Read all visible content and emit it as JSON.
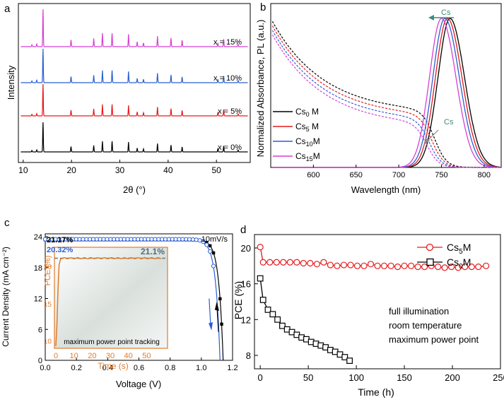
{
  "panel_labels": {
    "a": "a",
    "b": "b",
    "c": "c",
    "d": "d"
  },
  "chart_data": [
    {
      "id": "a",
      "type": "line",
      "title": "",
      "xlabel": "2θ (°)",
      "ylabel": "Intensity",
      "xlim": [
        9,
        57
      ],
      "xticks": [
        10,
        20,
        30,
        40,
        50
      ],
      "series": [
        {
          "name": "x = 0%",
          "color": "#000000"
        },
        {
          "name": "x = 5%",
          "color": "#e8191b"
        },
        {
          "name": "x = 10%",
          "color": "#2a5fd4"
        },
        {
          "name": "x = 15%",
          "color": "#d63fd6"
        }
      ],
      "peaks": [
        {
          "x": 11.8,
          "h": 0.05
        },
        {
          "x": 12.8,
          "h": 0.07
        },
        {
          "x": 14.1,
          "h": 1.0
        },
        {
          "x": 19.9,
          "h": 0.18
        },
        {
          "x": 24.6,
          "h": 0.22
        },
        {
          "x": 26.4,
          "h": 0.36
        },
        {
          "x": 28.4,
          "h": 0.36
        },
        {
          "x": 31.8,
          "h": 0.33
        },
        {
          "x": 33.6,
          "h": 0.13
        },
        {
          "x": 34.9,
          "h": 0.1
        },
        {
          "x": 37.8,
          "h": 0.28
        },
        {
          "x": 40.6,
          "h": 0.23
        },
        {
          "x": 42.9,
          "h": 0.17
        },
        {
          "x": 50.3,
          "h": 0.1
        },
        {
          "x": 51.5,
          "h": 0.2
        },
        {
          "x": 54.5,
          "h": 0.06
        }
      ]
    },
    {
      "id": "b",
      "type": "line",
      "title": "",
      "xlabel": "Wavelength (nm)",
      "ylabel": "Normalized Absorbance, PL (a.u.)",
      "xlim": [
        550,
        820
      ],
      "xticks": [
        600,
        650,
        700,
        750,
        800
      ],
      "ylim": [
        0,
        1.1
      ],
      "legend_position": "bottom-left",
      "series": [
        {
          "name_main": "Cs",
          "name_sub": "0",
          "name_suffix": " M",
          "color": "#000000",
          "pl_peak": 760,
          "abs_edge": 742
        },
        {
          "name_main": "Cs",
          "name_sub": "5",
          "name_suffix": " M",
          "color": "#e8191b",
          "pl_peak": 757,
          "abs_edge": 739
        },
        {
          "name_main": "Cs",
          "name_sub": "10",
          "name_suffix": "M",
          "color": "#2a5fd4",
          "pl_peak": 754,
          "abs_edge": 736
        },
        {
          "name_main": "Cs",
          "name_sub": "15",
          "name_suffix": "M",
          "color": "#d63fd6",
          "pl_peak": 750,
          "abs_edge": 733
        }
      ],
      "annotations": [
        "Cs",
        "Cs"
      ]
    },
    {
      "id": "c",
      "type": "line",
      "title": "",
      "xlabel": "Voltage (V)",
      "ylabel": "Current Density (mA cm⁻²)",
      "xlim": [
        0.0,
        1.2
      ],
      "ylim": [
        0,
        24
      ],
      "xticks": [
        0.0,
        0.2,
        0.4,
        0.6,
        0.8,
        1.0,
        1.2
      ],
      "yticks": [
        0,
        6,
        12,
        18,
        24
      ],
      "scan_rate": "10mV/s",
      "series": [
        {
          "name": "21.17%",
          "color": "#000000",
          "marker": "square-filled",
          "jsc": 23.4,
          "voc": 1.14
        },
        {
          "name": "20.32%",
          "color": "#2a5fd4",
          "marker": "circle-open",
          "jsc": 23.3,
          "voc": 1.12
        }
      ],
      "inset": {
        "xlabel": "Time (s)",
        "ylabel": "PCE (%)",
        "xlim": [
          0,
          60
        ],
        "ylim": [
          9,
          22
        ],
        "xticks": [
          0,
          10,
          20,
          30,
          40,
          50
        ],
        "yticks": [
          10,
          15,
          20
        ],
        "stabilized_value": "21.1%",
        "stabilized_pce": 21.1,
        "caption": "maximum power point tracking"
      }
    },
    {
      "id": "d",
      "type": "line",
      "title": "",
      "xlabel": "Time (h)",
      "ylabel": "PCE (%)",
      "xlim": [
        -6,
        250
      ],
      "ylim": [
        6.5,
        21.5
      ],
      "xticks": [
        0,
        50,
        100,
        150,
        200,
        250
      ],
      "yticks": [
        8,
        12,
        16,
        20
      ],
      "legend_position": "top-right",
      "annotation_lines": [
        "full illumination",
        "room temperature",
        "maximum power point"
      ],
      "series": [
        {
          "name_main": "Cs",
          "name_sub": "5",
          "name_suffix": "M",
          "color": "#e8191b",
          "marker": "circle-open",
          "x": [
            0,
            3,
            10,
            17,
            24,
            31,
            38,
            45,
            52,
            59,
            66,
            73,
            80,
            87,
            94,
            101,
            108,
            115,
            122,
            129,
            136,
            143,
            150,
            157,
            164,
            171,
            178,
            185,
            192,
            199,
            206,
            213,
            220,
            227,
            235
          ],
          "y": [
            20.1,
            18.4,
            18.4,
            18.4,
            18.4,
            18.4,
            18.4,
            18.3,
            18.3,
            18.2,
            18.4,
            18.1,
            18.0,
            18.1,
            18.1,
            18.0,
            18.0,
            18.2,
            18.0,
            18.0,
            18.0,
            17.9,
            18.0,
            18.0,
            17.9,
            17.9,
            18.0,
            17.9,
            17.8,
            17.9,
            17.8,
            17.9,
            17.9,
            17.9,
            18.0
          ]
        },
        {
          "name_main": "Cs",
          "name_sub": "0",
          "name_suffix": "M",
          "color": "#000000",
          "marker": "square-open",
          "x": [
            0,
            3,
            8,
            13,
            18,
            23,
            28,
            33,
            38,
            43,
            48,
            53,
            58,
            63,
            68,
            73,
            78,
            83,
            88,
            93
          ],
          "y": [
            16.6,
            14.2,
            13.1,
            12.6,
            12.0,
            11.3,
            10.9,
            10.6,
            10.3,
            10.0,
            9.8,
            9.5,
            9.3,
            9.1,
            8.9,
            8.6,
            8.4,
            8.1,
            7.8,
            7.4
          ]
        }
      ]
    }
  ]
}
